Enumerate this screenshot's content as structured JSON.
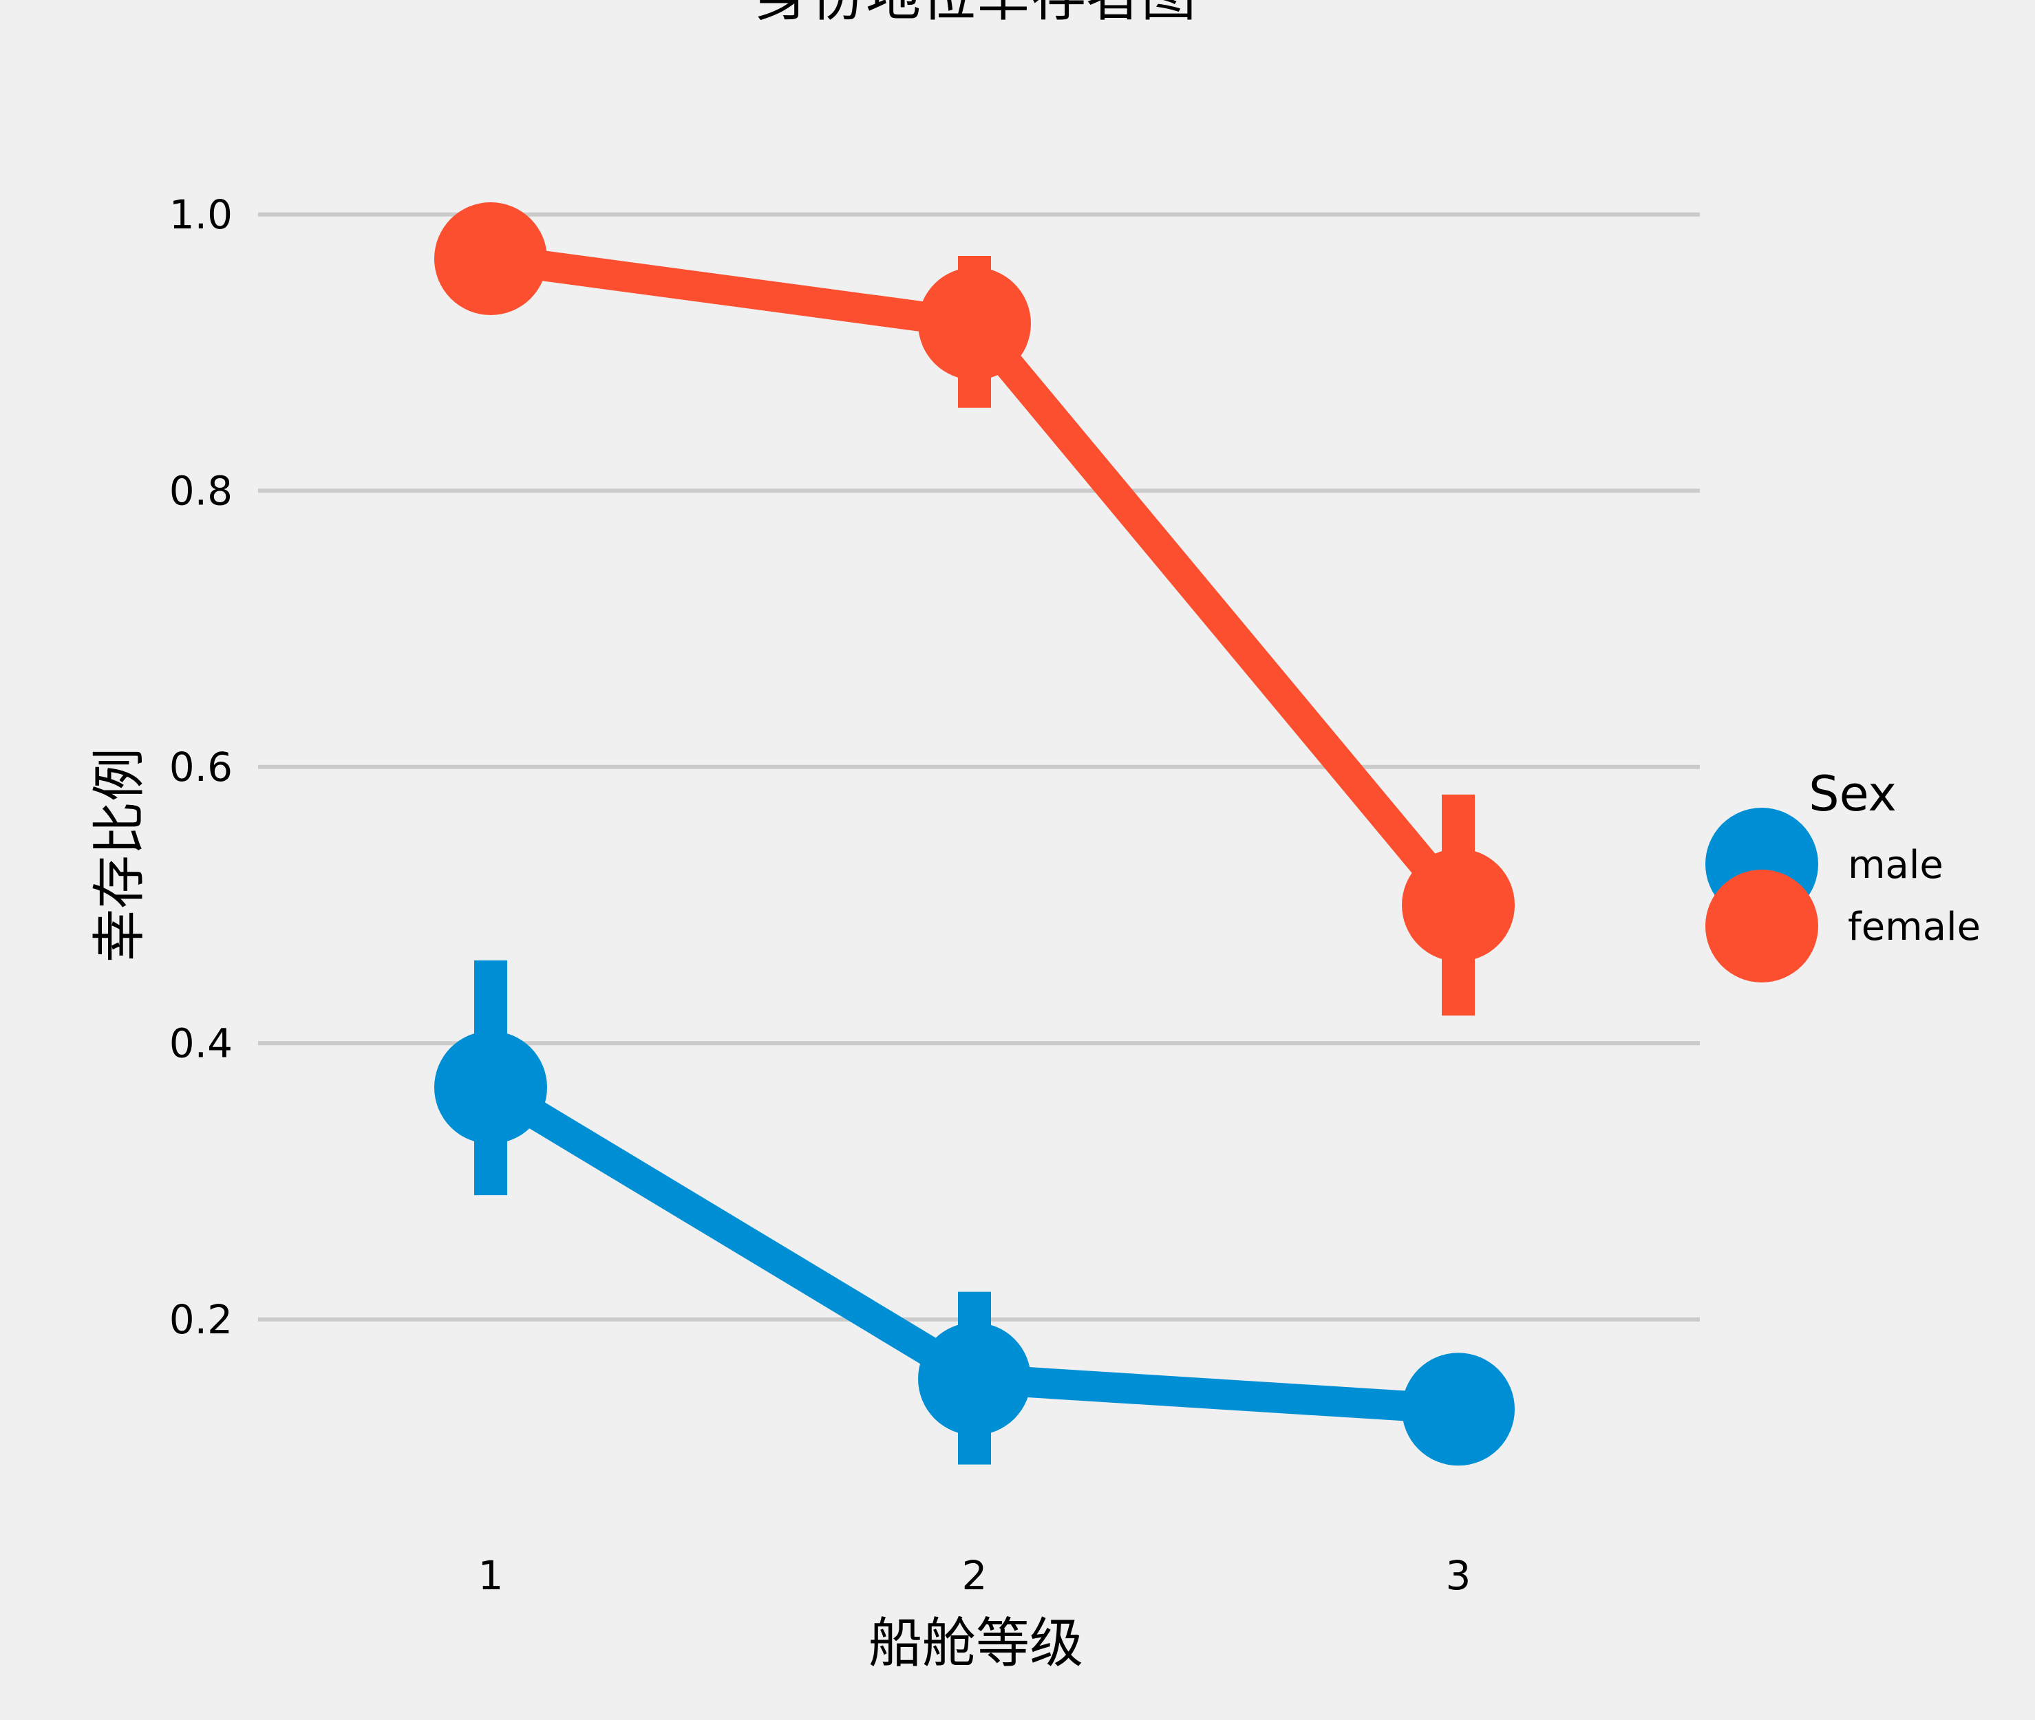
{
  "chart_data": {
    "type": "line",
    "title": "身份地位幸存者图",
    "xlabel": "船舱等级",
    "ylabel": "幸存比例",
    "categories": [
      "1",
      "2",
      "3"
    ],
    "ylim": [
      0.04,
      1.1
    ],
    "yticks": [
      0.2,
      0.4,
      0.6,
      0.8,
      1.0
    ],
    "ytick_labels": [
      "0.2",
      "0.4",
      "0.6",
      "0.8",
      "1.0"
    ],
    "grid": "horizontal",
    "legend": {
      "title": "Sex",
      "placement": "center-right",
      "entries": [
        "male",
        "female"
      ]
    },
    "series": [
      {
        "name": "male",
        "color": "#008fd5",
        "values": [
          0.368,
          0.157,
          0.135
        ],
        "ci": [
          [
            0.29,
            0.46
          ],
          [
            0.095,
            0.22
          ],
          [
            0.11,
            0.17
          ]
        ]
      },
      {
        "name": "female",
        "color": "#fc4f30",
        "values": [
          0.968,
          0.921,
          0.5
        ],
        "ci": [
          [
            0.93,
            1.0
          ],
          [
            0.86,
            0.97
          ],
          [
            0.42,
            0.58
          ]
        ]
      }
    ]
  }
}
